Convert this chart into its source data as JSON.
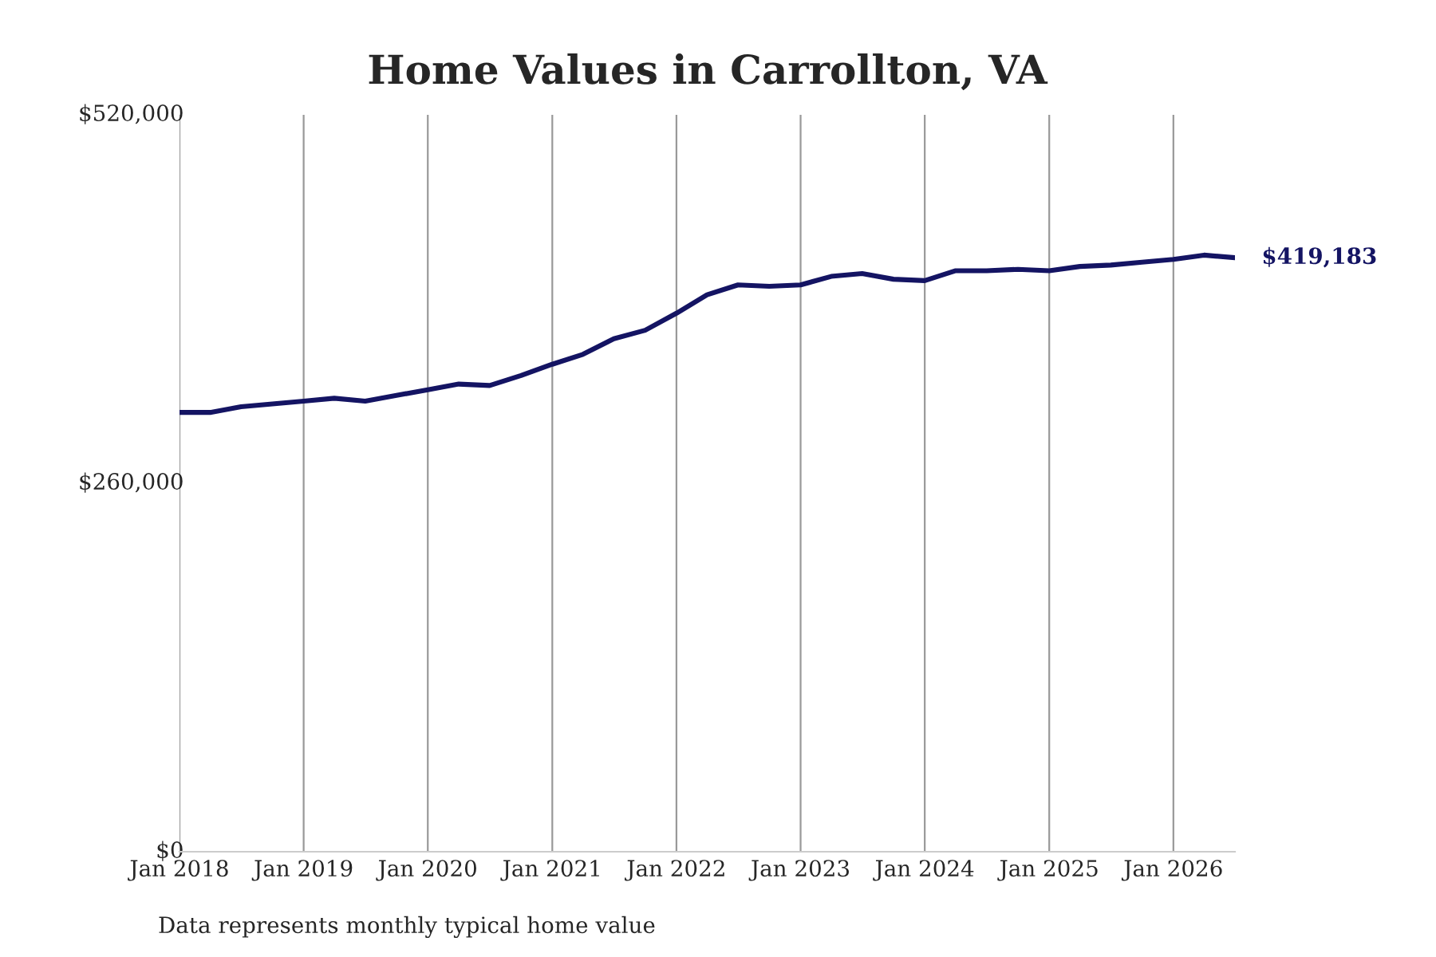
{
  "chart_data": {
    "type": "line",
    "title": "Home Values in Carrollton, VA",
    "x": [
      "2018-01",
      "2018-04",
      "2018-07",
      "2018-10",
      "2019-01",
      "2019-04",
      "2019-07",
      "2019-10",
      "2020-01",
      "2020-04",
      "2020-07",
      "2020-10",
      "2021-01",
      "2021-04",
      "2021-07",
      "2021-10",
      "2022-01",
      "2022-04",
      "2022-07",
      "2022-10",
      "2023-01",
      "2023-04",
      "2023-07",
      "2023-10",
      "2024-01",
      "2024-04",
      "2024-07",
      "2024-10",
      "2025-01",
      "2025-04",
      "2025-07",
      "2025-10",
      "2026-01",
      "2026-04",
      "2026-07"
    ],
    "series": [
      {
        "color": "#141463",
        "values": [
          310000,
          310000,
          314000,
          316000,
          318000,
          320000,
          318000,
          322000,
          326000,
          330000,
          329000,
          336000,
          344000,
          351000,
          362000,
          368000,
          380000,
          393000,
          400000,
          399000,
          400000,
          406000,
          408000,
          404000,
          403000,
          410000,
          410000,
          411000,
          410000,
          413000,
          414000,
          416000,
          418000,
          421000,
          419183
        ]
      }
    ],
    "xticks": [
      {
        "value": "2018-01",
        "label": "Jan 2018"
      },
      {
        "value": "2019-01",
        "label": "Jan 2019"
      },
      {
        "value": "2020-01",
        "label": "Jan 2020"
      },
      {
        "value": "2021-01",
        "label": "Jan 2021"
      },
      {
        "value": "2022-01",
        "label": "Jan 2022"
      },
      {
        "value": "2023-01",
        "label": "Jan 2023"
      },
      {
        "value": "2024-01",
        "label": "Jan 2024"
      },
      {
        "value": "2025-01",
        "label": "Jan 2025"
      },
      {
        "value": "2026-01",
        "label": "Jan 2026"
      }
    ],
    "ylim": [
      0,
      520000
    ],
    "yticks": [
      {
        "value": 0,
        "label": "$0"
      },
      {
        "value": 260000,
        "label": "$260,000"
      },
      {
        "value": 520000,
        "label": "$520,000"
      }
    ],
    "xlim": [
      "2018-01",
      "2026-07"
    ],
    "grid": "x",
    "line_style": "solid",
    "marker": "none",
    "annotations": [
      {
        "text": "$419,183",
        "x": "2026-07",
        "y": 419183
      },
      "Data represents monthly typical home value"
    ]
  }
}
